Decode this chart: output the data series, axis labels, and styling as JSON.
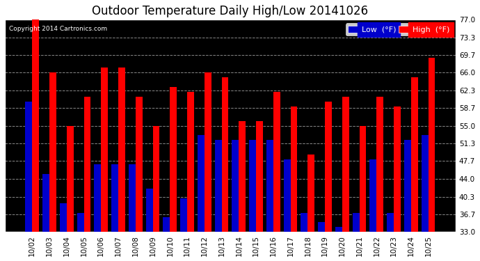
{
  "title": "Outdoor Temperature Daily High/Low 20141026",
  "copyright": "Copyright 2014 Cartronics.com",
  "legend_low": "Low  (°F)",
  "legend_high": "High  (°F)",
  "dates": [
    "10/02",
    "10/03",
    "10/04",
    "10/05",
    "10/06",
    "10/07",
    "10/08",
    "10/09",
    "10/10",
    "10/11",
    "10/12",
    "10/13",
    "10/14",
    "10/15",
    "10/16",
    "10/17",
    "10/18",
    "10/19",
    "10/20",
    "10/21",
    "10/22",
    "10/23",
    "10/24",
    "10/25"
  ],
  "high": [
    77,
    66,
    55,
    61,
    67,
    67,
    61,
    55,
    63,
    62,
    66,
    65,
    56,
    56,
    62,
    59,
    49,
    60,
    61,
    55,
    61,
    59,
    65,
    69
  ],
  "low": [
    60,
    45,
    39,
    37,
    47,
    47,
    47,
    42,
    36,
    40,
    53,
    52,
    52,
    52,
    52,
    48,
    37,
    35,
    34,
    37,
    48,
    37,
    52,
    53
  ],
  "high_color": "#ff0000",
  "low_color": "#0000cc",
  "bg_color": "#000000",
  "plot_bg_color": "#000000",
  "grid_color": "#555555",
  "ylim_min": 33.0,
  "ylim_max": 77.0,
  "yticks": [
    33.0,
    36.7,
    40.3,
    44.0,
    47.7,
    51.3,
    55.0,
    58.7,
    62.3,
    66.0,
    69.7,
    73.3,
    77.0
  ],
  "bar_width": 0.4,
  "title_fontsize": 12,
  "tick_fontsize": 7.5,
  "legend_fontsize": 8,
  "copyright_color": "#ffffff",
  "title_color": "#000000",
  "tick_color": "#000000",
  "ytick_color": "#000000"
}
